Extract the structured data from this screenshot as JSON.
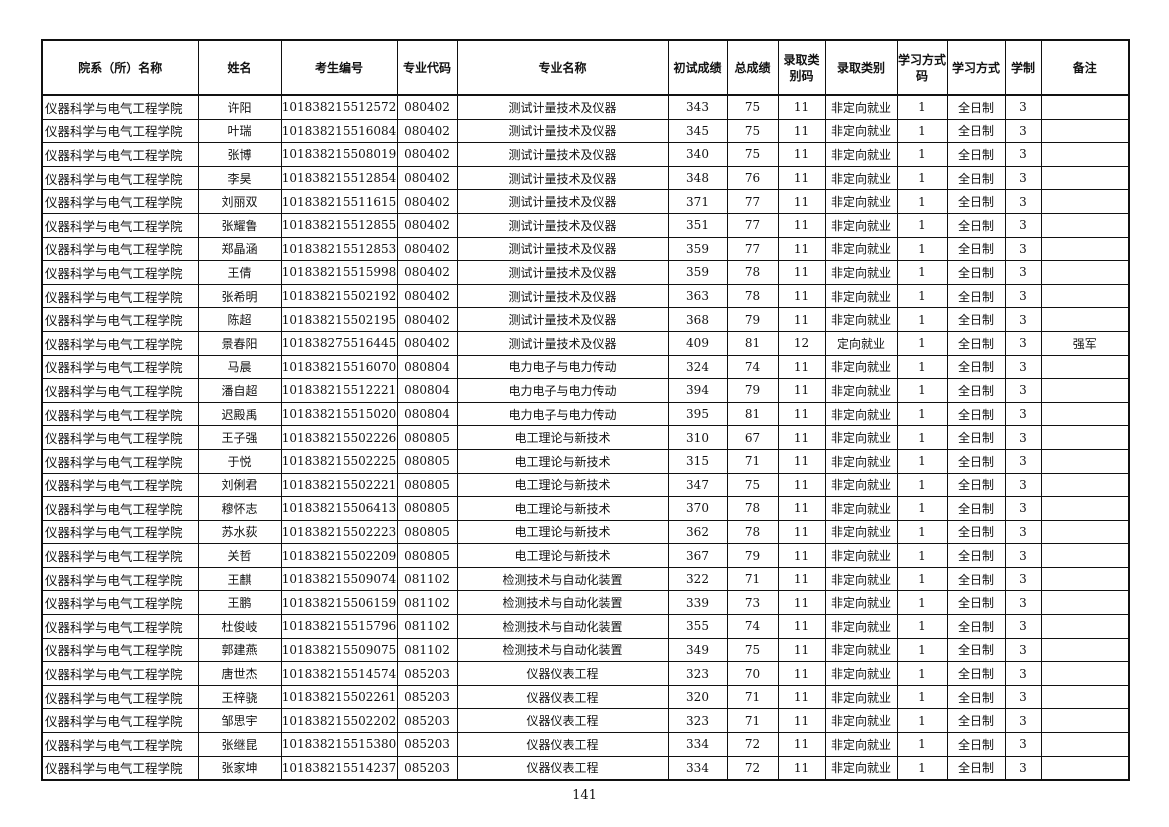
{
  "table": {
    "headers": [
      "院系（所）名称",
      "姓名",
      "考生编号",
      "专业代码",
      "专业名称",
      "初试成绩",
      "总成绩",
      "录取类别码",
      "录取类别",
      "学习方式码",
      "学习方式",
      "学制",
      "备注"
    ],
    "rows": [
      [
        "仪器科学与电气工程学院",
        "许阳",
        "101838215512572",
        "080402",
        "测试计量技术及仪器",
        "343",
        "75",
        "11",
        "非定向就业",
        "1",
        "全日制",
        "3",
        ""
      ],
      [
        "仪器科学与电气工程学院",
        "叶瑞",
        "101838215516084",
        "080402",
        "测试计量技术及仪器",
        "345",
        "75",
        "11",
        "非定向就业",
        "1",
        "全日制",
        "3",
        ""
      ],
      [
        "仪器科学与电气工程学院",
        "张博",
        "101838215508019",
        "080402",
        "测试计量技术及仪器",
        "340",
        "75",
        "11",
        "非定向就业",
        "1",
        "全日制",
        "3",
        ""
      ],
      [
        "仪器科学与电气工程学院",
        "李昊",
        "101838215512854",
        "080402",
        "测试计量技术及仪器",
        "348",
        "76",
        "11",
        "非定向就业",
        "1",
        "全日制",
        "3",
        ""
      ],
      [
        "仪器科学与电气工程学院",
        "刘丽双",
        "101838215511615",
        "080402",
        "测试计量技术及仪器",
        "371",
        "77",
        "11",
        "非定向就业",
        "1",
        "全日制",
        "3",
        ""
      ],
      [
        "仪器科学与电气工程学院",
        "张耀鲁",
        "101838215512855",
        "080402",
        "测试计量技术及仪器",
        "351",
        "77",
        "11",
        "非定向就业",
        "1",
        "全日制",
        "3",
        ""
      ],
      [
        "仪器科学与电气工程学院",
        "郑晶涵",
        "101838215512853",
        "080402",
        "测试计量技术及仪器",
        "359",
        "77",
        "11",
        "非定向就业",
        "1",
        "全日制",
        "3",
        ""
      ],
      [
        "仪器科学与电气工程学院",
        "王倩",
        "101838215515998",
        "080402",
        "测试计量技术及仪器",
        "359",
        "78",
        "11",
        "非定向就业",
        "1",
        "全日制",
        "3",
        ""
      ],
      [
        "仪器科学与电气工程学院",
        "张希明",
        "101838215502192",
        "080402",
        "测试计量技术及仪器",
        "363",
        "78",
        "11",
        "非定向就业",
        "1",
        "全日制",
        "3",
        ""
      ],
      [
        "仪器科学与电气工程学院",
        "陈超",
        "101838215502195",
        "080402",
        "测试计量技术及仪器",
        "368",
        "79",
        "11",
        "非定向就业",
        "1",
        "全日制",
        "3",
        ""
      ],
      [
        "仪器科学与电气工程学院",
        "景春阳",
        "101838275516445",
        "080402",
        "测试计量技术及仪器",
        "409",
        "81",
        "12",
        "定向就业",
        "1",
        "全日制",
        "3",
        "强军"
      ],
      [
        "仪器科学与电气工程学院",
        "马晨",
        "101838215516070",
        "080804",
        "电力电子与电力传动",
        "324",
        "74",
        "11",
        "非定向就业",
        "1",
        "全日制",
        "3",
        ""
      ],
      [
        "仪器科学与电气工程学院",
        "潘自超",
        "101838215512221",
        "080804",
        "电力电子与电力传动",
        "394",
        "79",
        "11",
        "非定向就业",
        "1",
        "全日制",
        "3",
        ""
      ],
      [
        "仪器科学与电气工程学院",
        "迟殿禹",
        "101838215515020",
        "080804",
        "电力电子与电力传动",
        "395",
        "81",
        "11",
        "非定向就业",
        "1",
        "全日制",
        "3",
        ""
      ],
      [
        "仪器科学与电气工程学院",
        "王子强",
        "101838215502226",
        "080805",
        "电工理论与新技术",
        "310",
        "67",
        "11",
        "非定向就业",
        "1",
        "全日制",
        "3",
        ""
      ],
      [
        "仪器科学与电气工程学院",
        "于悦",
        "101838215502225",
        "080805",
        "电工理论与新技术",
        "315",
        "71",
        "11",
        "非定向就业",
        "1",
        "全日制",
        "3",
        ""
      ],
      [
        "仪器科学与电气工程学院",
        "刘俐君",
        "101838215502221",
        "080805",
        "电工理论与新技术",
        "347",
        "75",
        "11",
        "非定向就业",
        "1",
        "全日制",
        "3",
        ""
      ],
      [
        "仪器科学与电气工程学院",
        "穆怀志",
        "101838215506413",
        "080805",
        "电工理论与新技术",
        "370",
        "78",
        "11",
        "非定向就业",
        "1",
        "全日制",
        "3",
        ""
      ],
      [
        "仪器科学与电气工程学院",
        "苏水荻",
        "101838215502223",
        "080805",
        "电工理论与新技术",
        "362",
        "78",
        "11",
        "非定向就业",
        "1",
        "全日制",
        "3",
        ""
      ],
      [
        "仪器科学与电气工程学院",
        "关哲",
        "101838215502209",
        "080805",
        "电工理论与新技术",
        "367",
        "79",
        "11",
        "非定向就业",
        "1",
        "全日制",
        "3",
        ""
      ],
      [
        "仪器科学与电气工程学院",
        "王麒",
        "101838215509074",
        "081102",
        "检测技术与自动化装置",
        "322",
        "71",
        "11",
        "非定向就业",
        "1",
        "全日制",
        "3",
        ""
      ],
      [
        "仪器科学与电气工程学院",
        "王鹏",
        "101838215506159",
        "081102",
        "检测技术与自动化装置",
        "339",
        "73",
        "11",
        "非定向就业",
        "1",
        "全日制",
        "3",
        ""
      ],
      [
        "仪器科学与电气工程学院",
        "杜俊岐",
        "101838215515796",
        "081102",
        "检测技术与自动化装置",
        "355",
        "74",
        "11",
        "非定向就业",
        "1",
        "全日制",
        "3",
        ""
      ],
      [
        "仪器科学与电气工程学院",
        "郭建燕",
        "101838215509075",
        "081102",
        "检测技术与自动化装置",
        "349",
        "75",
        "11",
        "非定向就业",
        "1",
        "全日制",
        "3",
        ""
      ],
      [
        "仪器科学与电气工程学院",
        "唐世杰",
        "101838215514574",
        "085203",
        "仪器仪表工程",
        "323",
        "70",
        "11",
        "非定向就业",
        "1",
        "全日制",
        "3",
        ""
      ],
      [
        "仪器科学与电气工程学院",
        "王梓骁",
        "101838215502261",
        "085203",
        "仪器仪表工程",
        "320",
        "71",
        "11",
        "非定向就业",
        "1",
        "全日制",
        "3",
        ""
      ],
      [
        "仪器科学与电气工程学院",
        "邹思宇",
        "101838215502202",
        "085203",
        "仪器仪表工程",
        "323",
        "71",
        "11",
        "非定向就业",
        "1",
        "全日制",
        "3",
        ""
      ],
      [
        "仪器科学与电气工程学院",
        "张继昆",
        "101838215515380",
        "085203",
        "仪器仪表工程",
        "334",
        "72",
        "11",
        "非定向就业",
        "1",
        "全日制",
        "3",
        ""
      ],
      [
        "仪器科学与电气工程学院",
        "张家坤",
        "101838215514237",
        "085203",
        "仪器仪表工程",
        "334",
        "72",
        "11",
        "非定向就业",
        "1",
        "全日制",
        "3",
        ""
      ]
    ]
  },
  "footer": {
    "page_number": "141"
  }
}
